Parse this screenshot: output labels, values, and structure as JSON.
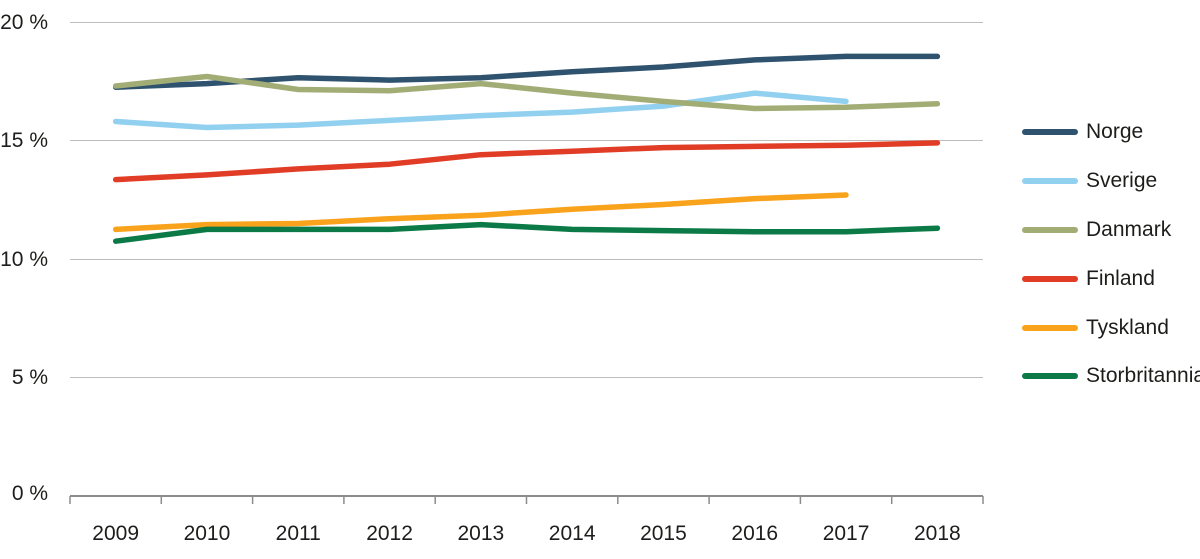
{
  "chart_data": {
    "type": "line",
    "x": [
      "2009",
      "2010",
      "2011",
      "2012",
      "2013",
      "2014",
      "2015",
      "2016",
      "2017",
      "2018"
    ],
    "series": [
      {
        "name": "Norge",
        "color": "#2f536f",
        "values": [
          17.25,
          17.4,
          17.65,
          17.55,
          17.65,
          17.9,
          18.1,
          18.4,
          18.55,
          18.55
        ]
      },
      {
        "name": "Sverige",
        "color": "#92d0f0",
        "values": [
          15.8,
          15.55,
          15.65,
          15.85,
          16.05,
          16.2,
          16.45,
          17.0,
          16.65,
          null
        ]
      },
      {
        "name": "Danmark",
        "color": "#a2ad76",
        "values": [
          17.3,
          17.7,
          17.15,
          17.1,
          17.4,
          17.0,
          16.65,
          16.35,
          16.4,
          16.55
        ]
      },
      {
        "name": "Finland",
        "color": "#e03c26",
        "values": [
          13.35,
          13.55,
          13.8,
          14.0,
          14.4,
          14.55,
          14.7,
          14.75,
          14.8,
          14.9
        ]
      },
      {
        "name": "Tyskland",
        "color": "#f9a21b",
        "values": [
          11.25,
          11.45,
          11.5,
          11.7,
          11.85,
          12.1,
          12.3,
          12.55,
          12.7,
          null
        ]
      },
      {
        "name": "Storbritannia",
        "color": "#0b7a47",
        "values": [
          10.75,
          11.25,
          11.25,
          11.25,
          11.45,
          11.25,
          11.2,
          11.15,
          11.15,
          11.3
        ]
      }
    ],
    "ytick_labels": [
      "20 %",
      "15 %",
      "10 %",
      "5 %",
      "0 %"
    ],
    "yticks": [
      20,
      15,
      10,
      5,
      0
    ],
    "ylim": [
      0,
      20
    ],
    "grid": true,
    "legend_position": "right"
  },
  "colors": {
    "grid": "#bdbdbd",
    "axis": "#8c8c8c",
    "text": "#1d1d1b",
    "background": "#ffffff"
  }
}
